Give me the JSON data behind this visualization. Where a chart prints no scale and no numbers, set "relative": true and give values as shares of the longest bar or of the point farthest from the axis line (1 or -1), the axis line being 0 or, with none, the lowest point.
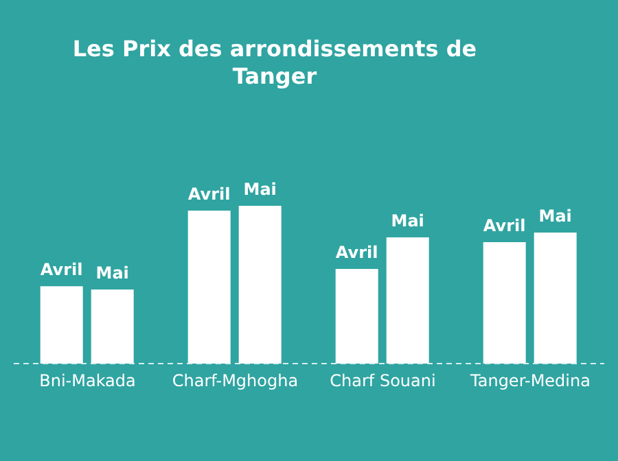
{
  "chart_data": {
    "type": "bar",
    "title": "Les Prix des arrondissements de Tanger",
    "categories": [
      "Bni-Makada",
      "Charf-Mghogha",
      "Charf Souani",
      "Tanger-Medina"
    ],
    "relative": true,
    "grid": false,
    "legend": false,
    "series": [
      {
        "name": "Avril",
        "color": "#ffffff",
        "values": [
          0.49,
          0.97,
          0.6,
          0.77
        ]
      },
      {
        "name": "Mai",
        "color": "#ffffff",
        "values": [
          0.47,
          1,
          0.8,
          0.83
        ]
      }
    ]
  }
}
